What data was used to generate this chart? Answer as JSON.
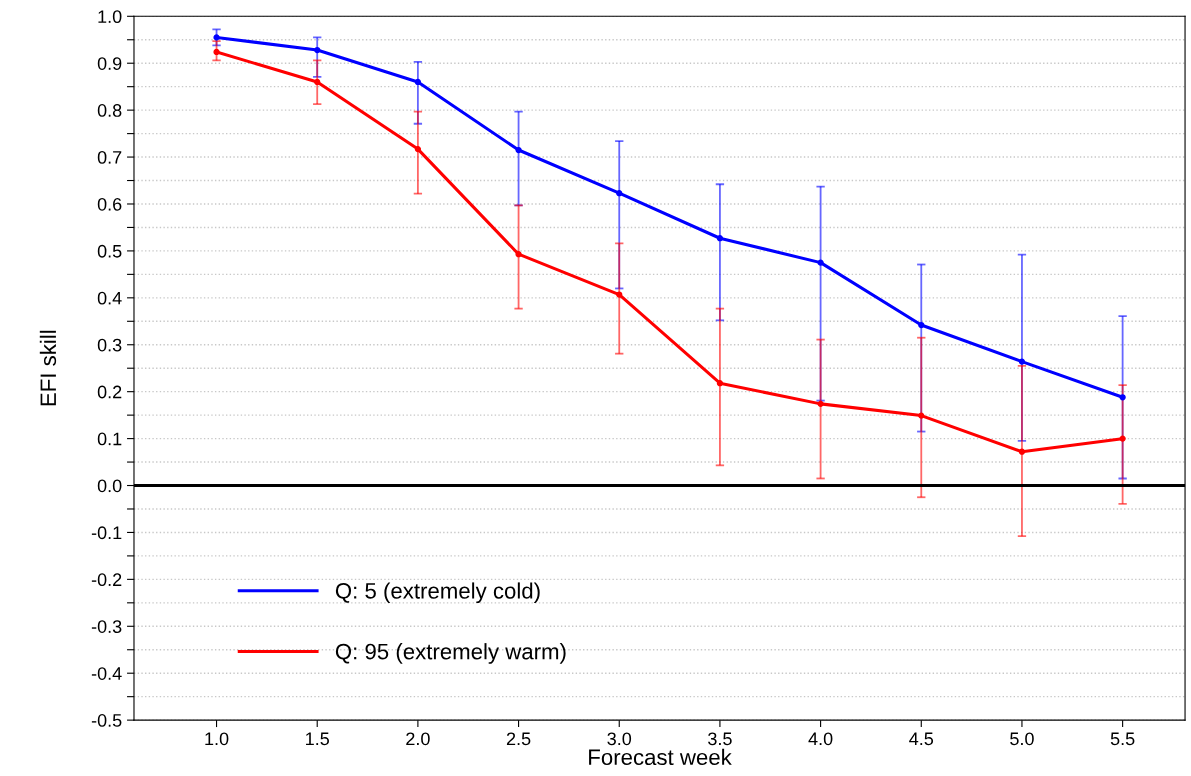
{
  "chart_data": {
    "type": "line",
    "xlabel": "Forecast week",
    "ylabel": "EFI skill",
    "x": [
      1.0,
      1.5,
      2.0,
      2.5,
      3.0,
      3.5,
      4.0,
      4.5,
      5.0,
      5.5
    ],
    "series": [
      {
        "name": "Q: 5 (extremely cold)",
        "color": "#0000ff",
        "values": [
          0.955,
          0.928,
          0.86,
          0.715,
          0.623,
          0.527,
          0.475,
          0.342,
          0.264,
          0.188
        ],
        "errors": [
          [
            0.938,
            0.972
          ],
          [
            0.871,
            0.955
          ],
          [
            0.771,
            0.903
          ],
          [
            0.597,
            0.797
          ],
          [
            0.42,
            0.734
          ],
          [
            0.352,
            0.642
          ],
          [
            0.181,
            0.637
          ],
          [
            0.115,
            0.471
          ],
          [
            0.095,
            0.492
          ],
          [
            0.015,
            0.361
          ]
        ]
      },
      {
        "name": "Q: 95 (extremely warm)",
        "color": "#ff0000",
        "values": [
          0.924,
          0.86,
          0.717,
          0.493,
          0.407,
          0.218,
          0.174,
          0.149,
          0.072,
          0.1
        ],
        "errors": [
          [
            0.906,
            0.947
          ],
          [
            0.813,
            0.906
          ],
          [
            0.622,
            0.797
          ],
          [
            0.377,
            0.597
          ],
          [
            0.281,
            0.516
          ],
          [
            0.043,
            0.377
          ],
          [
            0.015,
            0.311
          ],
          [
            -0.025,
            0.315
          ],
          [
            -0.108,
            0.255
          ],
          [
            -0.039,
            0.214
          ]
        ]
      }
    ],
    "xlim": [
      0.59,
      5.81
    ],
    "xticks": [
      {
        "value": 1.0,
        "label": "1.0"
      },
      {
        "value": 1.5,
        "label": "1.5"
      },
      {
        "value": 2.0,
        "label": "2.0"
      },
      {
        "value": 2.5,
        "label": "2.5"
      },
      {
        "value": 3.0,
        "label": "3.0"
      },
      {
        "value": 3.5,
        "label": "3.5"
      },
      {
        "value": 4.0,
        "label": "4.0"
      },
      {
        "value": 4.5,
        "label": "4.5"
      },
      {
        "value": 5.0,
        "label": "5.0"
      },
      {
        "value": 5.5,
        "label": "5.5"
      }
    ],
    "ylim": [
      -0.5,
      1.0
    ],
    "yticks": [
      {
        "value": -0.5,
        "label": "-0.5"
      },
      {
        "value": -0.45,
        "label": null
      },
      {
        "value": -0.4,
        "label": "-0.4"
      },
      {
        "value": -0.35,
        "label": null
      },
      {
        "value": -0.3,
        "label": "-0.3"
      },
      {
        "value": -0.25,
        "label": null
      },
      {
        "value": -0.2,
        "label": "-0.2"
      },
      {
        "value": -0.15,
        "label": null
      },
      {
        "value": -0.1,
        "label": "-0.1"
      },
      {
        "value": -0.05,
        "label": null
      },
      {
        "value": 0.0,
        "label": "0.0"
      },
      {
        "value": 0.05,
        "label": null
      },
      {
        "value": 0.1,
        "label": "0.1"
      },
      {
        "value": 0.15,
        "label": null
      },
      {
        "value": 0.2,
        "label": "0.2"
      },
      {
        "value": 0.25,
        "label": null
      },
      {
        "value": 0.3,
        "label": "0.3"
      },
      {
        "value": 0.35,
        "label": null
      },
      {
        "value": 0.4,
        "label": "0.4"
      },
      {
        "value": 0.45,
        "label": null
      },
      {
        "value": 0.5,
        "label": "0.5"
      },
      {
        "value": 0.55,
        "label": null
      },
      {
        "value": 0.6,
        "label": "0.6"
      },
      {
        "value": 0.65,
        "label": null
      },
      {
        "value": 0.7,
        "label": "0.7"
      },
      {
        "value": 0.75,
        "label": null
      },
      {
        "value": 0.8,
        "label": "0.8"
      },
      {
        "value": 0.85,
        "label": null
      },
      {
        "value": 0.9,
        "label": "0.9"
      },
      {
        "value": 0.95,
        "label": null
      },
      {
        "value": 1.0,
        "label": "1.0"
      }
    ],
    "ref_lines": [
      {
        "axis": "y",
        "value": 0,
        "label": null,
        "color": "#000000",
        "line_style": "solid"
      }
    ],
    "grid": "y",
    "legend": "bottom left",
    "marker": "circle",
    "line_style": "solid"
  }
}
